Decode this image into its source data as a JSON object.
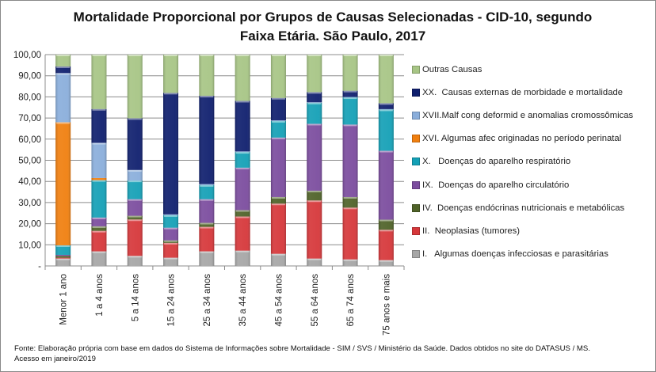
{
  "chart_data": {
    "type": "bar",
    "stacked": true,
    "title": "Mortalidade Proporcional por Grupos de Causas Selecionadas - CID-10, segundo Faixa Etária. São Paulo, 2017",
    "title_lines": [
      "Mortalidade Proporcional por Grupos de Causas Selecionadas - CID-10, segundo",
      "Faixa Etária. São Paulo, 2017"
    ],
    "xlabel": "",
    "ylabel": "",
    "ylim": [
      0,
      100
    ],
    "yticks": [
      "-",
      "10,00",
      "20,00",
      "30,00",
      "40,00",
      "50,00",
      "60,00",
      "70,00",
      "80,00",
      "90,00",
      "100,00"
    ],
    "grid": true,
    "legend_position": "right",
    "categories": [
      "Menor 1 ano",
      "1 a 4 anos",
      "5 a 14 anos",
      "15 a 24 anos",
      "25 a 34 anos",
      "35 a 44 anos",
      "45 a 54 anos",
      "55 a 64 anos",
      "65 a 74 anos",
      "75 anos e mais"
    ],
    "series": [
      {
        "name": "I.   Algumas doenças infecciosas e parasitárias",
        "color": "#a6a6a6",
        "values": [
          3.5,
          6.9,
          4.75,
          3.9,
          6.9,
          7.25,
          5.75,
          3.5,
          3.1,
          2.75
        ]
      },
      {
        "name": "II.  Neoplasias (tumores)",
        "color": "#d6373a",
        "values": [
          0.4,
          9.7,
          17.25,
          7.0,
          11.6,
          16.15,
          23.75,
          27.5,
          24.5,
          14.35
        ]
      },
      {
        "name": "IV.  Doenças endócrinas nutricionais e metabólicas",
        "color": "#4f6228",
        "values": [
          0.85,
          2.15,
          1.75,
          1.2,
          1.9,
          3.0,
          3.1,
          4.6,
          5.0,
          4.8
        ]
      },
      {
        "name": "IX.  Doenças do aparelho circulatório",
        "color": "#7b4c9e",
        "values": [
          0.5,
          4.15,
          7.85,
          6.0,
          11.2,
          20.1,
          28.15,
          31.65,
          34.3,
          32.6
        ]
      },
      {
        "name": "X.   Doenças do aparelho respiratório",
        "color": "#14a0b6",
        "values": [
          4.5,
          17.7,
          8.8,
          5.9,
          6.65,
          7.4,
          7.85,
          10.0,
          12.85,
          19.5
        ]
      },
      {
        "name": "XVI. Algumas afec originadas no período perinatal",
        "color": "#f07f0f",
        "values": [
          58.25,
          1.0,
          0,
          0,
          0,
          0,
          0,
          0,
          0,
          0
        ]
      },
      {
        "name": "XVII.Malf cong deformid e anomalias cromossômicas",
        "color": "#8aaedb",
        "values": [
          23.25,
          16.65,
          5.0,
          0.4,
          0.5,
          0.3,
          0.3,
          0.2,
          0.2,
          0.2
        ]
      },
      {
        "name": "XX.  Causas externas de morbidade e mortalidade",
        "color": "#0f1f6e",
        "values": [
          3.15,
          16.0,
          24.5,
          57.5,
          41.75,
          23.9,
          10.6,
          4.8,
          2.95,
          2.8
        ]
      },
      {
        "name": "Outras Causas",
        "color": "#a7c585",
        "values": [
          5.6,
          25.75,
          30.1,
          18.1,
          19.5,
          21.9,
          20.5,
          17.75,
          17.1,
          23.0
        ]
      }
    ]
  },
  "footer": {
    "line1": "Fonte: Elaboração própria com base em dados do  Sistema de Informações sobre Mortalidade - SIM / SVS / Ministério da Saúde. Dados obtidos no site do DATASUS / MS.",
    "line2": "Acesso em janeiro/2019"
  }
}
